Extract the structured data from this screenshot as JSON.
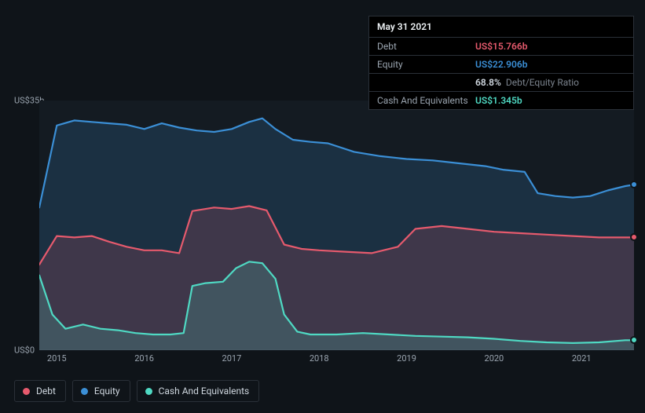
{
  "colors": {
    "background": "#0f1419",
    "plot_bg": "#141b22",
    "grid": "#2a3038",
    "text_muted": "#9aa4af",
    "text": "#cfd7df",
    "debt": "#e65a6d",
    "equity": "#3b8fd6",
    "cash": "#4fd9c3"
  },
  "tooltip": {
    "date": "May 31 2021",
    "rows": [
      {
        "label": "Debt",
        "value": "US$15.766b",
        "colorKey": "debt"
      },
      {
        "label": "Equity",
        "value": "US$22.906b",
        "colorKey": "equity"
      },
      {
        "label": "",
        "value": "68.8%",
        "sub": "Debt/Equity Ratio",
        "colorKey": "text"
      },
      {
        "label": "Cash And Equivalents",
        "value": "US$1.345b",
        "colorKey": "cash"
      }
    ]
  },
  "chart": {
    "type": "area",
    "y_axis": {
      "min": 0,
      "max": 35,
      "unit": "US$b",
      "labels": [
        {
          "value": 0,
          "text": "US$0"
        },
        {
          "value": 35,
          "text": "US$35b"
        }
      ]
    },
    "x_axis": {
      "min": 2014.8,
      "max": 2021.6,
      "ticks": [
        2015,
        2016,
        2017,
        2018,
        2019,
        2020,
        2021
      ]
    },
    "series": {
      "debt": {
        "label": "Debt",
        "points": [
          [
            2014.8,
            12.0
          ],
          [
            2015.0,
            16.0
          ],
          [
            2015.2,
            15.8
          ],
          [
            2015.4,
            16.0
          ],
          [
            2015.6,
            15.2
          ],
          [
            2015.8,
            14.5
          ],
          [
            2016.0,
            14.0
          ],
          [
            2016.2,
            14.0
          ],
          [
            2016.4,
            13.6
          ],
          [
            2016.55,
            19.5
          ],
          [
            2016.8,
            20.0
          ],
          [
            2017.0,
            19.8
          ],
          [
            2017.2,
            20.2
          ],
          [
            2017.4,
            19.6
          ],
          [
            2017.6,
            14.8
          ],
          [
            2017.8,
            14.2
          ],
          [
            2018.0,
            14.0
          ],
          [
            2018.3,
            13.8
          ],
          [
            2018.6,
            13.6
          ],
          [
            2018.9,
            14.5
          ],
          [
            2019.1,
            17.0
          ],
          [
            2019.4,
            17.4
          ],
          [
            2019.7,
            17.0
          ],
          [
            2020.0,
            16.6
          ],
          [
            2020.3,
            16.4
          ],
          [
            2020.6,
            16.2
          ],
          [
            2020.9,
            16.0
          ],
          [
            2021.2,
            15.8
          ],
          [
            2021.5,
            15.8
          ],
          [
            2021.6,
            15.8
          ]
        ]
      },
      "equity": {
        "label": "Equity",
        "points": [
          [
            2014.8,
            20.0
          ],
          [
            2015.0,
            31.5
          ],
          [
            2015.2,
            32.2
          ],
          [
            2015.4,
            32.0
          ],
          [
            2015.6,
            31.8
          ],
          [
            2015.8,
            31.6
          ],
          [
            2016.0,
            31.0
          ],
          [
            2016.2,
            31.8
          ],
          [
            2016.4,
            31.2
          ],
          [
            2016.6,
            30.8
          ],
          [
            2016.8,
            30.6
          ],
          [
            2017.0,
            31.0
          ],
          [
            2017.2,
            32.0
          ],
          [
            2017.35,
            32.5
          ],
          [
            2017.5,
            31.0
          ],
          [
            2017.7,
            29.5
          ],
          [
            2017.9,
            29.2
          ],
          [
            2018.1,
            29.0
          ],
          [
            2018.4,
            27.8
          ],
          [
            2018.7,
            27.2
          ],
          [
            2019.0,
            26.8
          ],
          [
            2019.3,
            26.6
          ],
          [
            2019.6,
            26.2
          ],
          [
            2019.9,
            25.8
          ],
          [
            2020.1,
            25.3
          ],
          [
            2020.35,
            25.0
          ],
          [
            2020.5,
            22.0
          ],
          [
            2020.7,
            21.6
          ],
          [
            2020.9,
            21.4
          ],
          [
            2021.1,
            21.6
          ],
          [
            2021.3,
            22.4
          ],
          [
            2021.5,
            23.0
          ],
          [
            2021.6,
            23.2
          ]
        ]
      },
      "cash": {
        "label": "Cash And Equivalents",
        "points": [
          [
            2014.8,
            10.5
          ],
          [
            2014.95,
            5.0
          ],
          [
            2015.1,
            3.0
          ],
          [
            2015.3,
            3.6
          ],
          [
            2015.5,
            3.0
          ],
          [
            2015.7,
            2.8
          ],
          [
            2015.9,
            2.4
          ],
          [
            2016.1,
            2.2
          ],
          [
            2016.3,
            2.2
          ],
          [
            2016.45,
            2.4
          ],
          [
            2016.55,
            9.0
          ],
          [
            2016.7,
            9.4
          ],
          [
            2016.9,
            9.6
          ],
          [
            2017.05,
            11.5
          ],
          [
            2017.2,
            12.4
          ],
          [
            2017.35,
            12.2
          ],
          [
            2017.5,
            10.0
          ],
          [
            2017.6,
            5.0
          ],
          [
            2017.75,
            2.6
          ],
          [
            2017.9,
            2.2
          ],
          [
            2018.2,
            2.2
          ],
          [
            2018.5,
            2.4
          ],
          [
            2018.8,
            2.2
          ],
          [
            2019.1,
            2.0
          ],
          [
            2019.4,
            1.9
          ],
          [
            2019.7,
            1.8
          ],
          [
            2020.0,
            1.6
          ],
          [
            2020.3,
            1.3
          ],
          [
            2020.6,
            1.1
          ],
          [
            2020.9,
            1.0
          ],
          [
            2021.2,
            1.1
          ],
          [
            2021.5,
            1.4
          ],
          [
            2021.6,
            1.4
          ]
        ]
      }
    },
    "end_markers": [
      {
        "series": "equity",
        "x": 2021.6,
        "y": 23.2
      },
      {
        "series": "debt",
        "x": 2021.6,
        "y": 15.8
      },
      {
        "series": "cash",
        "x": 2021.6,
        "y": 1.4
      }
    ],
    "fill_opacity": 0.18,
    "line_width": 2.2
  },
  "legend": [
    {
      "label": "Debt",
      "colorKey": "debt"
    },
    {
      "label": "Equity",
      "colorKey": "equity"
    },
    {
      "label": "Cash And Equivalents",
      "colorKey": "cash"
    }
  ]
}
